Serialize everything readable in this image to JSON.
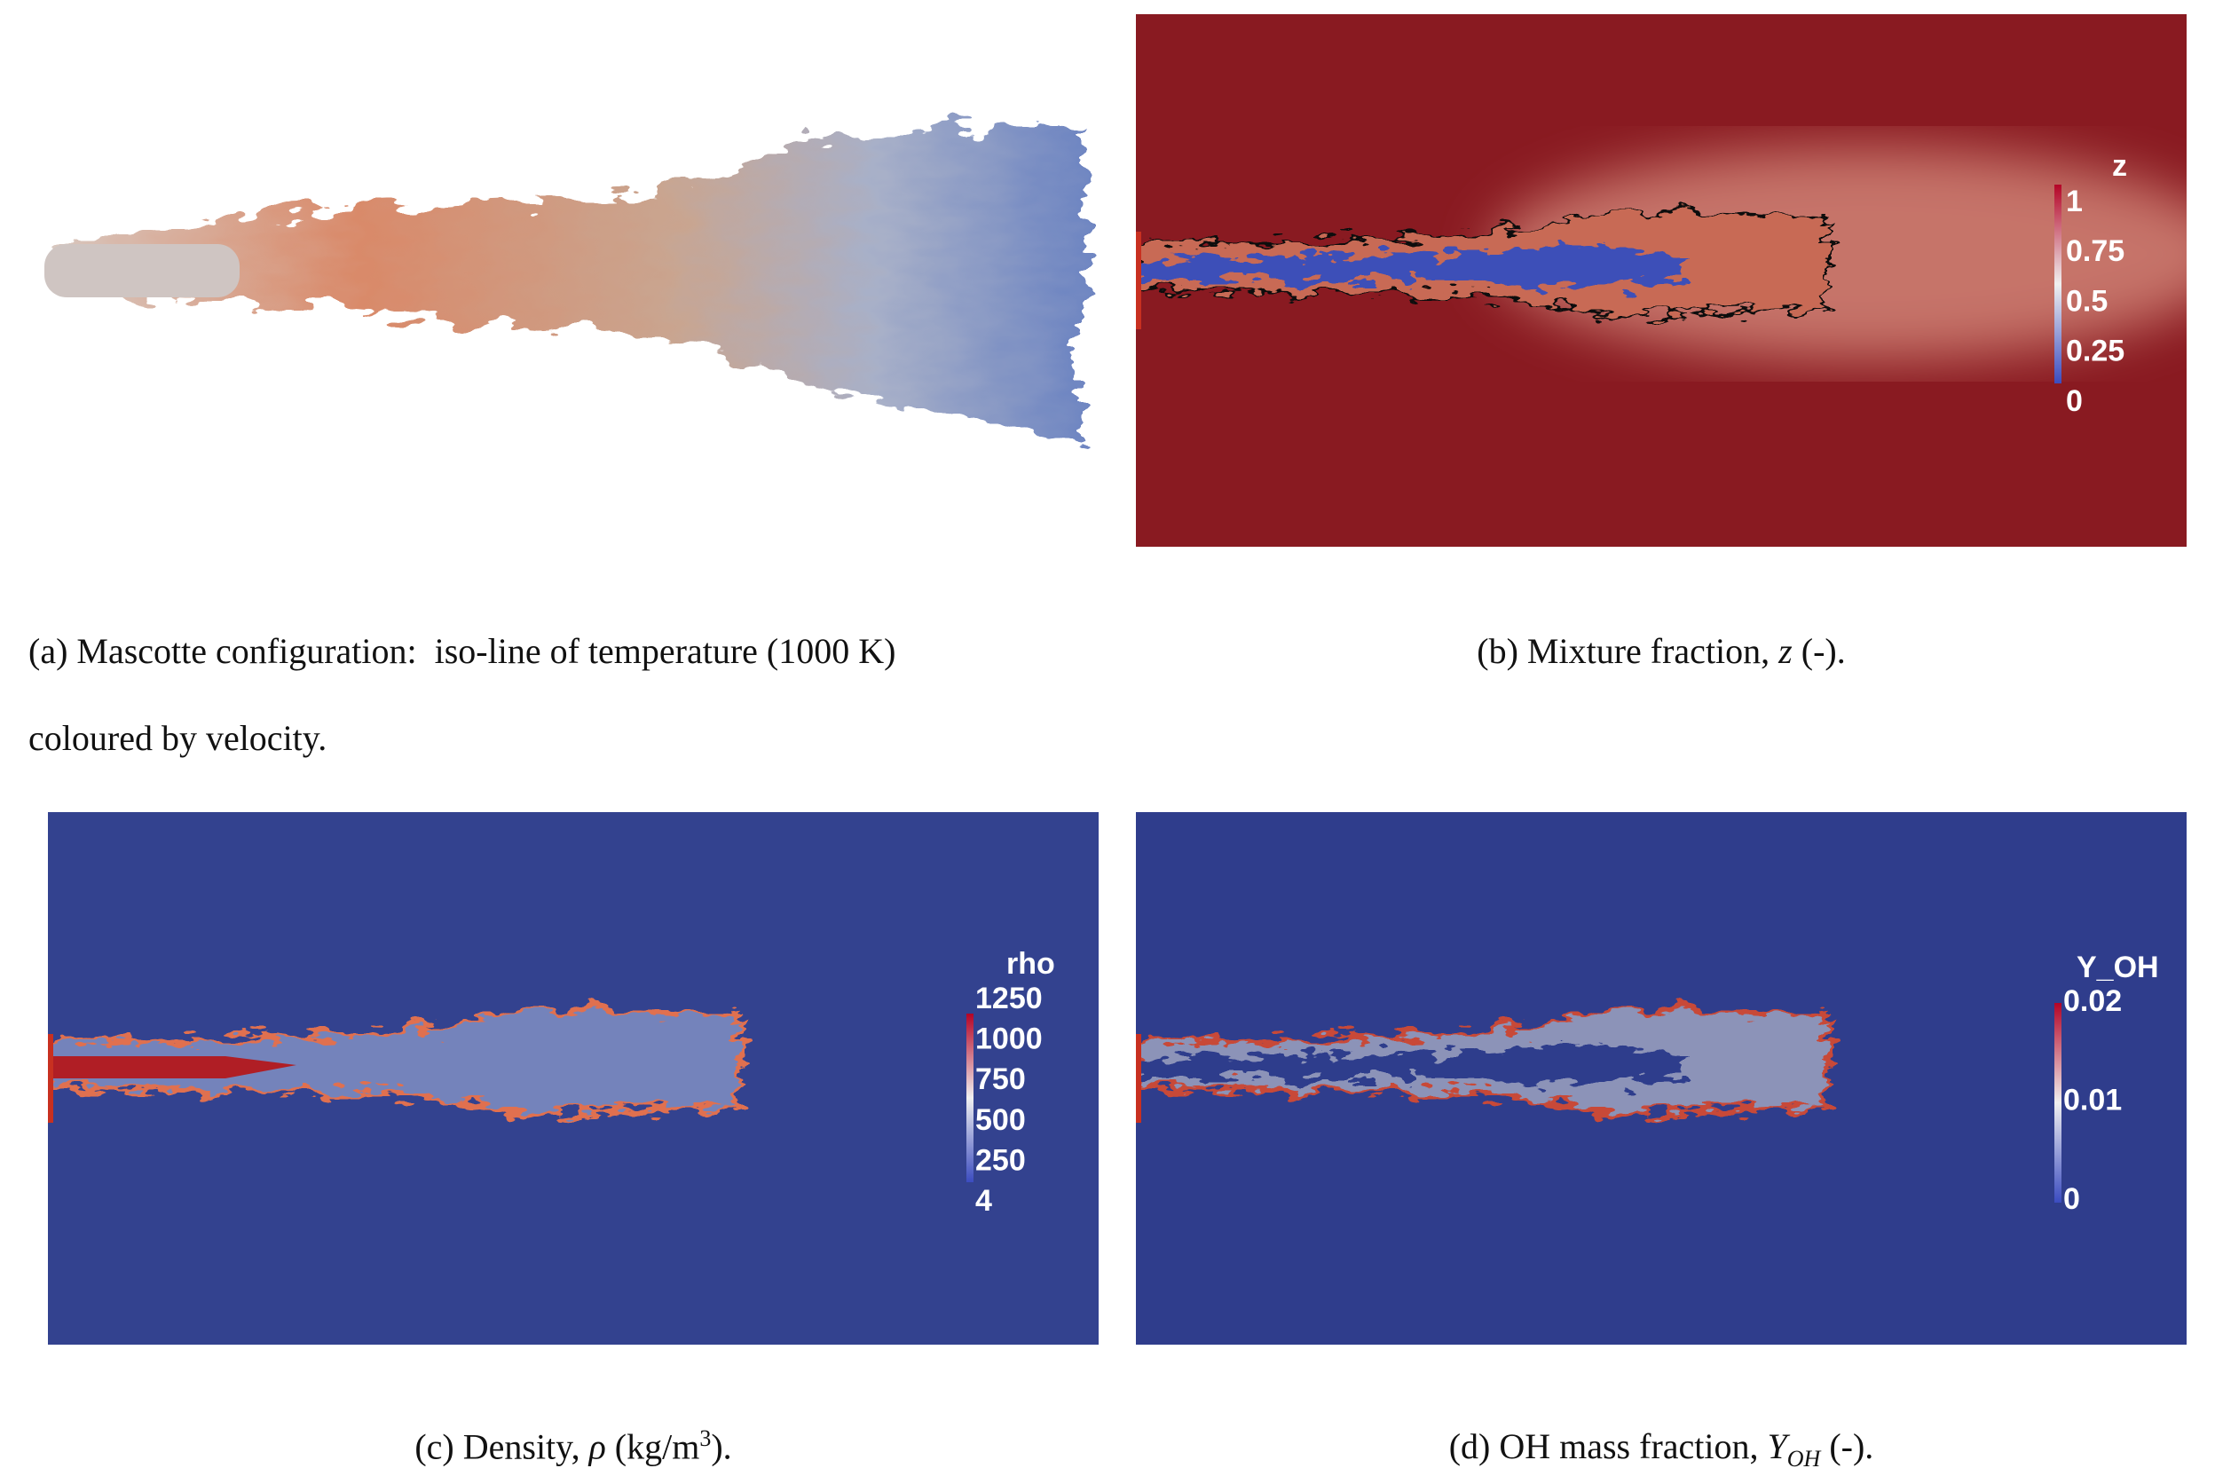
{
  "panels": {
    "a": {
      "caption": [
        "(a) Mascotte configuration:  iso-line of temperature (1000 K)",
        "coloured by velocity."
      ]
    },
    "b": {
      "caption": [
        "(b) Mixture fraction, ",
        "z",
        " (-)."
      ],
      "colorbar": {
        "title": "z",
        "ticks": [
          "1",
          "0.75",
          "0.5",
          "0.25",
          "0"
        ]
      }
    },
    "c": {
      "caption": [
        "(c) Density, ",
        "ρ",
        " (kg/m",
        "3",
        ")."
      ],
      "colorbar": {
        "title": "rho",
        "ticks": [
          "1250",
          "1000",
          "750",
          "500",
          "250",
          "4"
        ]
      }
    },
    "d": {
      "caption": [
        "(d) OH mass fraction, ",
        "Y",
        "OH",
        " (-)."
      ],
      "colorbar": {
        "title": "Y_OH",
        "ticks": [
          "0.02",
          "0.01",
          "0"
        ]
      }
    }
  }
}
